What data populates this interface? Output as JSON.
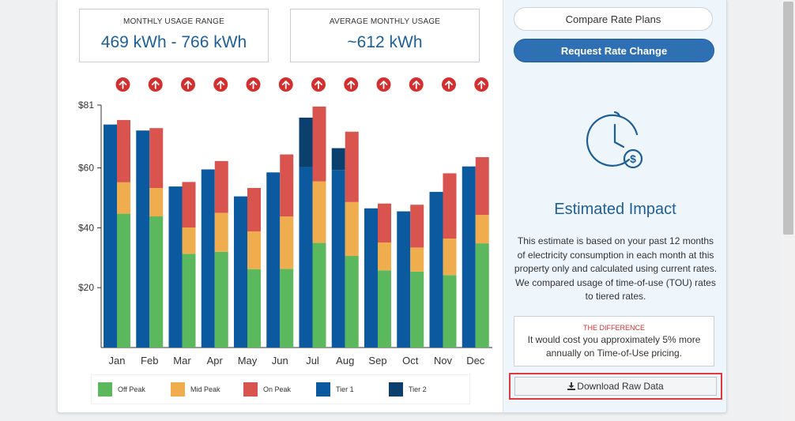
{
  "stats": {
    "range_label": "MONTHLY USAGE RANGE",
    "range_value": "469 kWh - 766 kWh",
    "avg_label": "AVERAGE MONTHLY USAGE",
    "avg_value": "~612 kWh"
  },
  "chart_data": {
    "type": "bar",
    "stacked": true,
    "categories": [
      "Jan",
      "Feb",
      "Mar",
      "Apr",
      "May",
      "Jun",
      "Jul",
      "Aug",
      "Sep",
      "Oct",
      "Nov",
      "Dec"
    ],
    "yticks": [
      "$81",
      "$60",
      "$40",
      "$20"
    ],
    "ylim": [
      0,
      81
    ],
    "grid": false,
    "legend_position": "bottom",
    "groups": [
      {
        "name": "Tiered",
        "series": [
          {
            "name": "Tier 1",
            "color": "#0b5aa0",
            "values": [
              74.5,
              72.5,
              53.8,
              59.5,
              50.5,
              58.5,
              60.3,
              59.3,
              46.5,
              45.5,
              52,
              60.5
            ]
          },
          {
            "name": "Tier 2",
            "color": "#0a3f6e",
            "values": [
              0,
              0,
              0,
              0,
              0,
              0,
              16.5,
              7.3,
              0,
              0,
              0,
              0
            ]
          }
        ]
      },
      {
        "name": "TOU",
        "series": [
          {
            "name": "Off Peak",
            "color": "#5cb85c",
            "values": [
              44.7,
              43.8,
              31.3,
              32,
              26.2,
              26.3,
              35,
              30.6,
              25.8,
              25.4,
              24.2,
              34.8
            ]
          },
          {
            "name": "Mid Peak",
            "color": "#f0ad4e",
            "values": [
              10.5,
              9.5,
              8.8,
              13,
              12.6,
              17.5,
              20.5,
              18,
              9.3,
              8,
              12.2,
              9.5
            ]
          },
          {
            "name": "On Peak",
            "color": "#d9534f",
            "values": [
              20.8,
              20,
              15.2,
              17.3,
              14.5,
              20.7,
              25,
              23.5,
              13,
              14.3,
              21.8,
              19.3
            ]
          }
        ]
      }
    ],
    "arrow_color": "#d32f2f"
  },
  "legend": [
    {
      "label": "Off Peak",
      "color": "#5cb85c"
    },
    {
      "label": "Mid Peak",
      "color": "#f0ad4e"
    },
    {
      "label": "On Peak",
      "color": "#d9534f"
    },
    {
      "label": "Tier 1",
      "color": "#0b5aa0"
    },
    {
      "label": "Tier 2",
      "color": "#0a3f6e"
    }
  ],
  "sidebar": {
    "compare_label": "Compare Rate Plans",
    "request_label": "Request Rate Change",
    "impact_title": "Estimated Impact",
    "impact_text": "This estimate is based on your past 12 months of electricity consumption in each month at this property only and calculated using current rates. We compared usage of time-of-use (TOU) rates to tiered rates.",
    "difference_heading": "THE DIFFERENCE",
    "difference_text": "It would cost you approximately 5% more annually on Time-of-Use pricing.",
    "download_label": "Download Raw Data",
    "download_icon": "download-icon",
    "impact_icon": "clock-dollar-icon",
    "accent_color": "#1e5f97"
  }
}
